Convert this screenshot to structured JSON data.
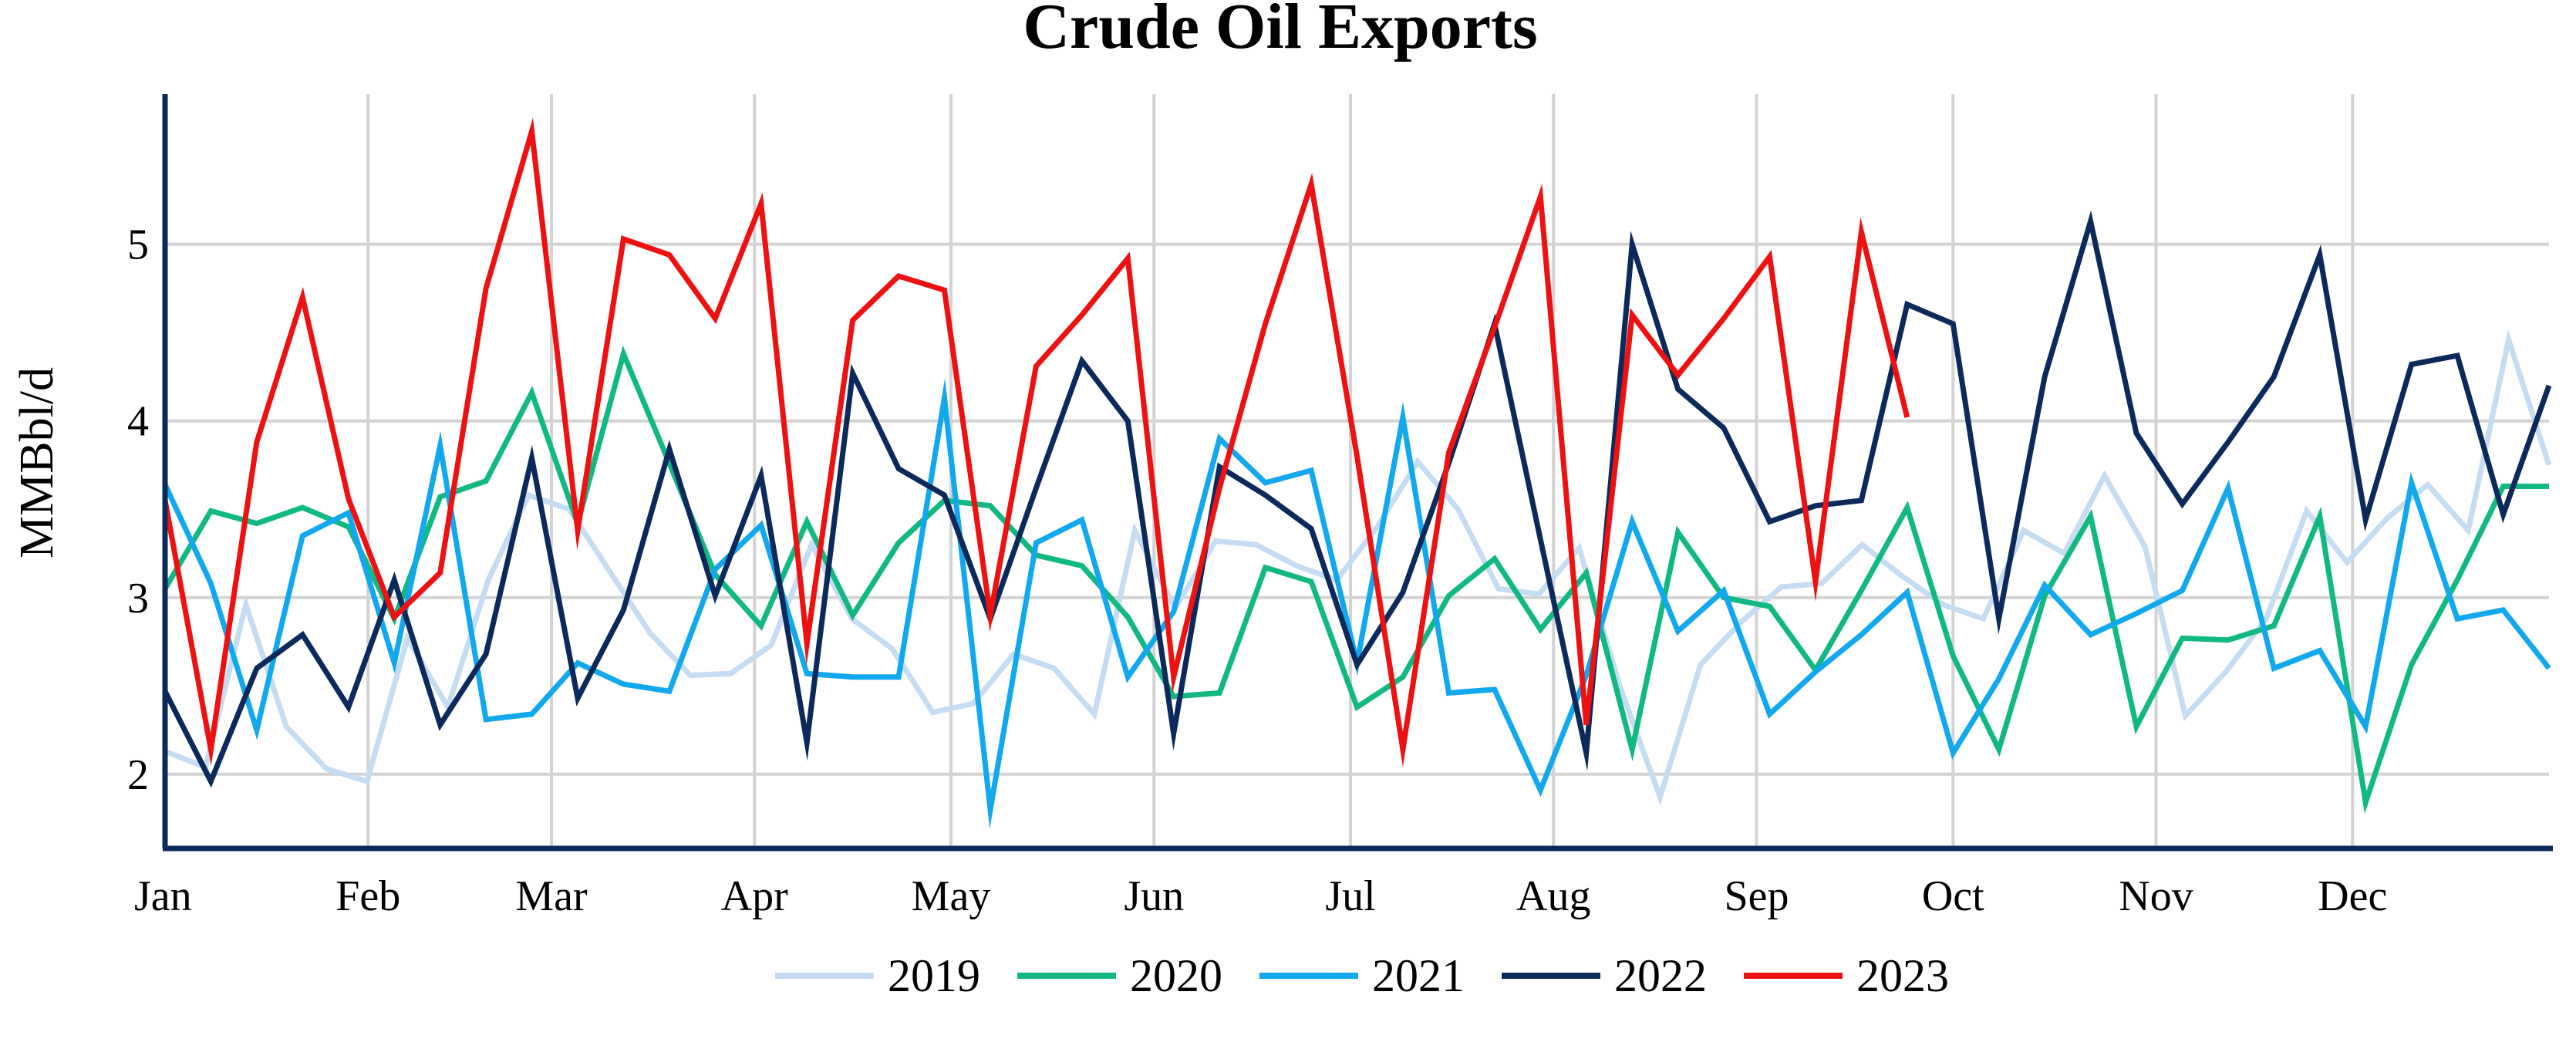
{
  "chart_data": {
    "type": "line",
    "title": "Crude Oil Exports",
    "xlabel": "",
    "ylabel": "MMBbl/d",
    "x_tick_labels": [
      "Jan",
      "Feb",
      "Mar",
      "Apr",
      "May",
      "Jun",
      "Jul",
      "Aug",
      "Sep",
      "Oct",
      "Nov",
      "Dec"
    ],
    "y_ticks": [
      2,
      3,
      4,
      5
    ],
    "ylim": [
      1.58,
      5.85
    ],
    "xlim": [
      1,
      53
    ],
    "grid": true,
    "legend_position": "bottom",
    "series": [
      {
        "name": "2019",
        "color": "#c6dcf2",
        "values": [
          2.13,
          2.04,
          2.96,
          2.27,
          2.03,
          1.96,
          2.77,
          2.38,
          3.1,
          3.58,
          3.5,
          3.15,
          2.8,
          2.56,
          2.57,
          2.73,
          3.3,
          2.88,
          2.71,
          2.35,
          2.4,
          2.68,
          2.6,
          2.34,
          3.38,
          2.94,
          3.32,
          3.3,
          3.18,
          3.1,
          3.4,
          3.77,
          3.5,
          3.05,
          3.02,
          3.28,
          2.5,
          1.87,
          2.62,
          2.86,
          3.06,
          3.08,
          3.3,
          3.12,
          2.96,
          2.88,
          3.38,
          3.25,
          3.69,
          3.29,
          2.33,
          2.58,
          2.88,
          3.49,
          3.2,
          3.45,
          3.64,
          3.38,
          4.46,
          3.75
        ]
      },
      {
        "name": "2020",
        "color": "#12b882",
        "values": [
          3.05,
          3.49,
          3.42,
          3.51,
          3.4,
          2.88,
          3.57,
          3.66,
          4.16,
          3.42,
          4.38,
          3.76,
          3.13,
          2.84,
          3.43,
          2.9,
          3.31,
          3.55,
          3.52,
          3.24,
          3.18,
          2.89,
          2.44,
          2.46,
          3.17,
          3.09,
          2.38,
          2.55,
          3.01,
          3.22,
          2.82,
          3.14,
          2.14,
          3.37,
          3.0,
          2.95,
          2.59,
          3.04,
          3.51,
          2.67,
          2.14,
          3.01,
          3.46,
          2.27,
          2.77,
          2.76,
          2.84,
          3.46,
          1.84,
          2.62,
          3.1,
          3.63,
          3.63
        ]
      },
      {
        "name": "2021",
        "color": "#12a8ee",
        "values": [
          3.64,
          3.08,
          2.25,
          3.35,
          3.48,
          2.63,
          3.86,
          2.31,
          2.34,
          2.63,
          2.51,
          2.47,
          3.16,
          3.41,
          2.57,
          2.55,
          2.55,
          4.13,
          1.8,
          3.31,
          3.44,
          2.55,
          2.92,
          3.9,
          3.65,
          3.72,
          2.63,
          4.02,
          2.46,
          2.48,
          1.91,
          2.56,
          3.43,
          2.81,
          3.04,
          2.34,
          2.58,
          2.79,
          3.03,
          2.12,
          2.54,
          3.07,
          2.79,
          2.91,
          3.04,
          3.62,
          2.6,
          2.7,
          2.27,
          3.65,
          2.88,
          2.93,
          2.6
        ]
      },
      {
        "name": "2022",
        "color": "#0b2a5b",
        "values": [
          2.47,
          1.96,
          2.6,
          2.79,
          2.38,
          3.1,
          2.28,
          2.68,
          3.79,
          2.43,
          2.93,
          3.84,
          3.01,
          3.69,
          2.18,
          4.27,
          3.73,
          3.58,
          2.88,
          3.62,
          4.34,
          4.0,
          2.23,
          3.74,
          3.58,
          3.39,
          2.62,
          3.03,
          3.76,
          4.55,
          3.33,
          2.12,
          5.0,
          4.18,
          3.96,
          3.43,
          3.52,
          3.55,
          4.66,
          4.55,
          2.88,
          4.25,
          5.13,
          3.93,
          3.53,
          3.88,
          4.25,
          4.94,
          3.44,
          4.32,
          4.37,
          3.47,
          4.2
        ]
      },
      {
        "name": "2023",
        "color": "#ee1111",
        "values": [
          3.55,
          2.14,
          3.88,
          4.7,
          3.56,
          2.89,
          3.14,
          4.75,
          5.64,
          3.38,
          5.03,
          4.94,
          4.58,
          5.23,
          2.74,
          4.57,
          4.82,
          4.74,
          2.9,
          4.31,
          4.6,
          4.92,
          2.55,
          3.62,
          4.55,
          5.34,
          3.8,
          2.14,
          3.82,
          4.53,
          5.27,
          2.28,
          4.6,
          4.26,
          4.58,
          4.93,
          3.09,
          5.07,
          4.02
        ]
      }
    ]
  }
}
